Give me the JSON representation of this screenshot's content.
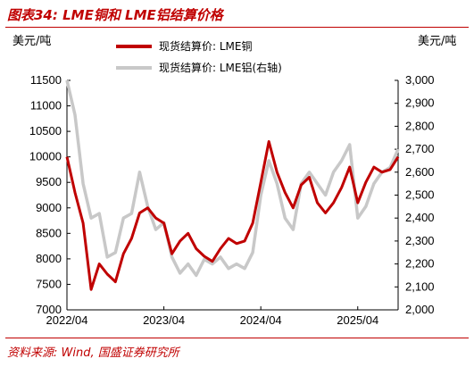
{
  "header": {
    "title": "图表34: LME铜和 LME铝结算价格"
  },
  "footer": {
    "source": "资料来源: Wind, 国盛证券研究所"
  },
  "chart_data": {
    "type": "line",
    "title": "图表34: LME铜和 LME铝结算价格",
    "y_left_unit": "美元/吨",
    "y_right_unit": "美元/吨",
    "x_ticks": [
      "2022/04",
      "2023/04",
      "2024/04",
      "2025/04"
    ],
    "y_left_ticks": [
      "11500",
      "11000",
      "10500",
      "10000",
      "9500",
      "9000",
      "8500",
      "8000",
      "7500",
      "7000"
    ],
    "y_right_ticks": [
      "3,000",
      "2,900",
      "2,800",
      "2,700",
      "2,600",
      "2,500",
      "2,400",
      "2,300",
      "2,200",
      "2,100",
      "2,000"
    ],
    "y_left_range": [
      7000,
      11500
    ],
    "y_right_range": [
      2000,
      3000
    ],
    "x_range": [
      "2022-04",
      "2025-09"
    ],
    "grid": false,
    "legend_position": "top-center",
    "series": [
      {
        "name": "现货结算价: LME铜",
        "axis": "left",
        "color": "#c00000",
        "x": [
          "2022-04",
          "2022-05",
          "2022-06",
          "2022-07",
          "2022-08",
          "2022-09",
          "2022-10",
          "2022-11",
          "2022-12",
          "2023-01",
          "2023-02",
          "2023-03",
          "2023-04",
          "2023-05",
          "2023-06",
          "2023-07",
          "2023-08",
          "2023-09",
          "2023-10",
          "2023-11",
          "2023-12",
          "2024-01",
          "2024-02",
          "2024-03",
          "2024-04",
          "2024-05",
          "2024-06",
          "2024-07",
          "2024-08",
          "2024-09",
          "2024-10",
          "2024-11",
          "2024-12",
          "2025-01",
          "2025-02",
          "2025-03",
          "2025-04",
          "2025-05",
          "2025-06",
          "2025-07",
          "2025-08",
          "2025-09"
        ],
        "values": [
          10000,
          9300,
          8700,
          7400,
          7900,
          7700,
          7550,
          8100,
          8400,
          8900,
          9000,
          8800,
          8700,
          8100,
          8350,
          8500,
          8200,
          8050,
          7950,
          8200,
          8400,
          8300,
          8350,
          8700,
          9500,
          10300,
          9700,
          9300,
          9000,
          9450,
          9600,
          9100,
          8900,
          9100,
          9400,
          9800,
          9100,
          9500,
          9800,
          9700,
          9750,
          10000
        ]
      },
      {
        "name": "现货结算价: LME铝(右轴)",
        "axis": "right",
        "color": "#c8c8c8",
        "x": [
          "2022-04",
          "2022-05",
          "2022-06",
          "2022-07",
          "2022-08",
          "2022-09",
          "2022-10",
          "2022-11",
          "2022-12",
          "2023-01",
          "2023-02",
          "2023-03",
          "2023-04",
          "2023-05",
          "2023-06",
          "2023-07",
          "2023-08",
          "2023-09",
          "2023-10",
          "2023-11",
          "2023-12",
          "2024-01",
          "2024-02",
          "2024-03",
          "2024-04",
          "2024-05",
          "2024-06",
          "2024-07",
          "2024-08",
          "2024-09",
          "2024-10",
          "2024-11",
          "2024-12",
          "2025-01",
          "2025-02",
          "2025-03",
          "2025-04",
          "2025-05",
          "2025-06",
          "2025-07",
          "2025-08",
          "2025-09"
        ],
        "values": [
          3000,
          2850,
          2550,
          2400,
          2420,
          2230,
          2250,
          2400,
          2420,
          2600,
          2450,
          2350,
          2380,
          2230,
          2160,
          2200,
          2150,
          2220,
          2200,
          2230,
          2180,
          2200,
          2180,
          2250,
          2500,
          2650,
          2550,
          2400,
          2350,
          2550,
          2600,
          2550,
          2500,
          2600,
          2650,
          2720,
          2400,
          2450,
          2550,
          2600,
          2620,
          2700
        ]
      }
    ]
  }
}
